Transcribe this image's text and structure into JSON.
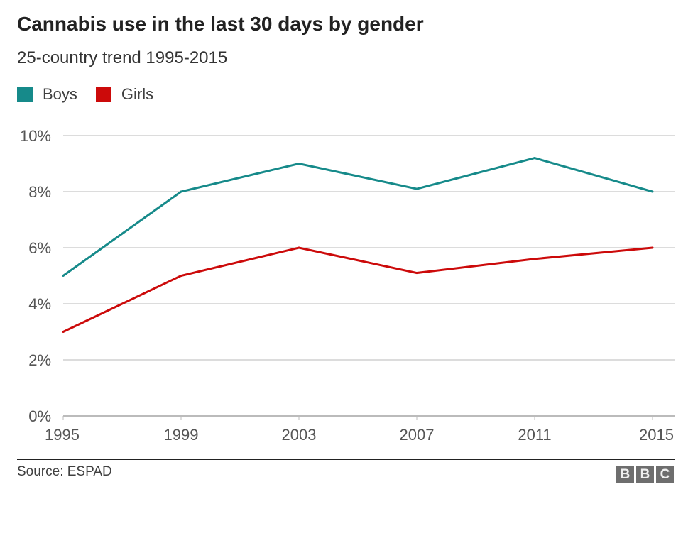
{
  "chart_data": {
    "type": "line",
    "title": "Cannabis use in the last 30 days by gender",
    "subtitle": "25-country trend 1995-2015",
    "x": [
      1995,
      1999,
      2003,
      2007,
      2011,
      2015
    ],
    "x_tick_labels": [
      "1995",
      "1999",
      "2003",
      "2007",
      "2011",
      "2015"
    ],
    "y_tick_labels": [
      "0%",
      "2%",
      "4%",
      "6%",
      "8%",
      "10%"
    ],
    "y_ticks": [
      0,
      2,
      4,
      6,
      8,
      10
    ],
    "ylim": [
      0,
      10
    ],
    "xlim": [
      1995,
      2015
    ],
    "grid": true,
    "legend_placement": "top-left",
    "series": [
      {
        "name": "Boys",
        "color": "#168a8a",
        "values": [
          5.0,
          8.0,
          9.0,
          8.1,
          9.2,
          8.0
        ]
      },
      {
        "name": "Girls",
        "color": "#cc0a0a",
        "values": [
          3.0,
          5.0,
          6.0,
          5.1,
          5.6,
          6.0
        ]
      }
    ],
    "source": "Source: ESPAD"
  },
  "logo": "BBC"
}
